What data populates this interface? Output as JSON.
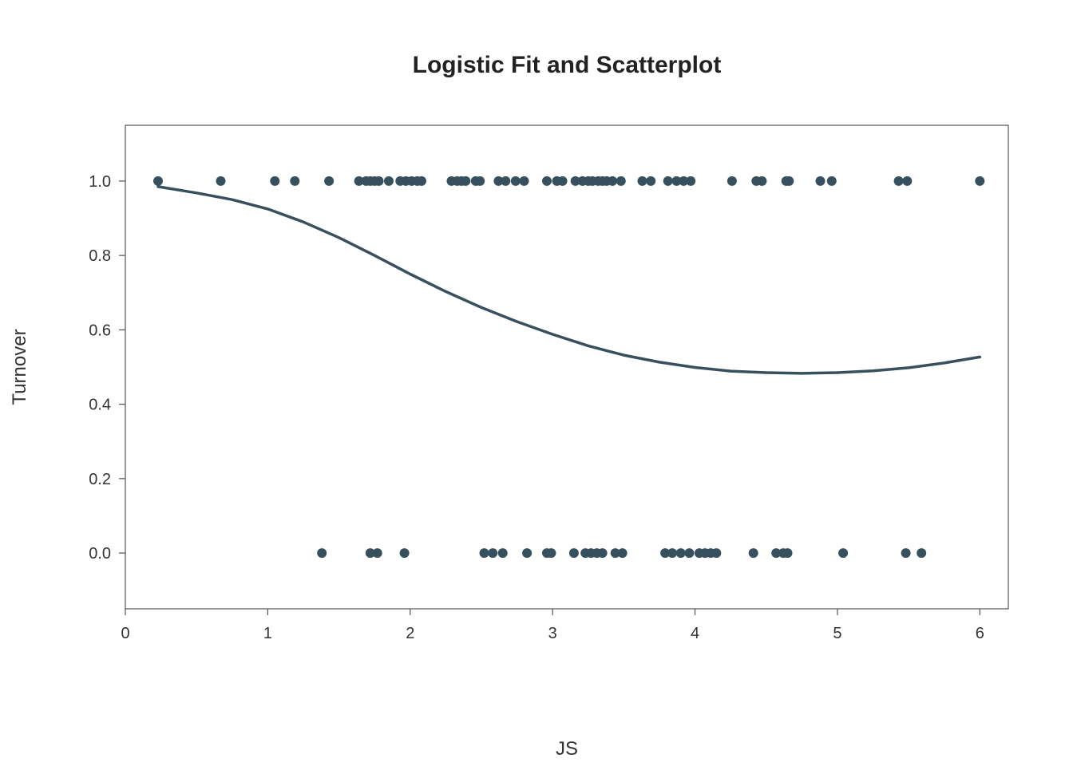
{
  "chart_data": {
    "type": "scatter",
    "title": "Logistic Fit and Scatterplot",
    "xlabel": "JS",
    "ylabel": "Turnover",
    "xlim": [
      0,
      6.2
    ],
    "ylim": [
      -0.15,
      1.15
    ],
    "x_ticks": [
      "0",
      "1",
      "2",
      "3",
      "4",
      "5",
      "6"
    ],
    "y_ticks": [
      "0.0",
      "0.2",
      "0.4",
      "0.6",
      "0.8",
      "1.0"
    ],
    "grid": false,
    "colors": {
      "points": "#37505e",
      "curve": "#37505e",
      "frame": "#555555"
    },
    "series": [
      {
        "type": "scatter",
        "points": [
          [
            0.23,
            1
          ],
          [
            0.67,
            1
          ],
          [
            1.05,
            1
          ],
          [
            1.19,
            1
          ],
          [
            1.43,
            1
          ],
          [
            1.64,
            1
          ],
          [
            1.69,
            1
          ],
          [
            1.72,
            1
          ],
          [
            1.75,
            1
          ],
          [
            1.78,
            1
          ],
          [
            1.85,
            1
          ],
          [
            1.93,
            1
          ],
          [
            1.97,
            1
          ],
          [
            2.01,
            1
          ],
          [
            2.05,
            1
          ],
          [
            2.08,
            1
          ],
          [
            2.29,
            1
          ],
          [
            2.33,
            1
          ],
          [
            2.36,
            1
          ],
          [
            2.39,
            1
          ],
          [
            2.46,
            1
          ],
          [
            2.49,
            1
          ],
          [
            2.62,
            1
          ],
          [
            2.67,
            1
          ],
          [
            2.74,
            1
          ],
          [
            2.8,
            1
          ],
          [
            2.96,
            1
          ],
          [
            3.03,
            1
          ],
          [
            3.07,
            1
          ],
          [
            3.16,
            1
          ],
          [
            3.21,
            1
          ],
          [
            3.25,
            1
          ],
          [
            3.28,
            1
          ],
          [
            3.32,
            1
          ],
          [
            3.35,
            1
          ],
          [
            3.38,
            1
          ],
          [
            3.42,
            1
          ],
          [
            3.48,
            1
          ],
          [
            3.63,
            1
          ],
          [
            3.69,
            1
          ],
          [
            3.81,
            1
          ],
          [
            3.87,
            1
          ],
          [
            3.92,
            1
          ],
          [
            3.97,
            1
          ],
          [
            4.26,
            1
          ],
          [
            4.43,
            1
          ],
          [
            4.47,
            1
          ],
          [
            4.64,
            1
          ],
          [
            4.66,
            1
          ],
          [
            4.88,
            1
          ],
          [
            4.96,
            1
          ],
          [
            5.43,
            1
          ],
          [
            5.49,
            1
          ],
          [
            6.0,
            1
          ],
          [
            1.38,
            0
          ],
          [
            1.72,
            0
          ],
          [
            1.77,
            0
          ],
          [
            1.96,
            0
          ],
          [
            2.52,
            0
          ],
          [
            2.58,
            0
          ],
          [
            2.65,
            0
          ],
          [
            2.82,
            0
          ],
          [
            2.96,
            0
          ],
          [
            2.99,
            0
          ],
          [
            3.15,
            0
          ],
          [
            3.23,
            0
          ],
          [
            3.27,
            0
          ],
          [
            3.31,
            0
          ],
          [
            3.35,
            0
          ],
          [
            3.44,
            0
          ],
          [
            3.49,
            0
          ],
          [
            3.79,
            0
          ],
          [
            3.84,
            0
          ],
          [
            3.9,
            0
          ],
          [
            3.96,
            0
          ],
          [
            4.03,
            0
          ],
          [
            4.07,
            0
          ],
          [
            4.11,
            0
          ],
          [
            4.15,
            0
          ],
          [
            4.41,
            0
          ],
          [
            4.57,
            0
          ],
          [
            4.62,
            0
          ],
          [
            4.65,
            0
          ],
          [
            5.04,
            0
          ],
          [
            5.48,
            0
          ],
          [
            5.59,
            0
          ]
        ]
      },
      {
        "type": "line",
        "points": [
          [
            0.23,
            0.985
          ],
          [
            0.5,
            0.968
          ],
          [
            0.75,
            0.95
          ],
          [
            1.0,
            0.925
          ],
          [
            1.25,
            0.89
          ],
          [
            1.5,
            0.848
          ],
          [
            1.75,
            0.8
          ],
          [
            2.0,
            0.75
          ],
          [
            2.25,
            0.703
          ],
          [
            2.5,
            0.66
          ],
          [
            2.75,
            0.622
          ],
          [
            3.0,
            0.588
          ],
          [
            3.25,
            0.557
          ],
          [
            3.5,
            0.532
          ],
          [
            3.75,
            0.513
          ],
          [
            4.0,
            0.499
          ],
          [
            4.25,
            0.489
          ],
          [
            4.5,
            0.485
          ],
          [
            4.75,
            0.483
          ],
          [
            5.0,
            0.485
          ],
          [
            5.25,
            0.49
          ],
          [
            5.5,
            0.498
          ],
          [
            5.75,
            0.511
          ],
          [
            6.0,
            0.527
          ]
        ]
      }
    ]
  }
}
